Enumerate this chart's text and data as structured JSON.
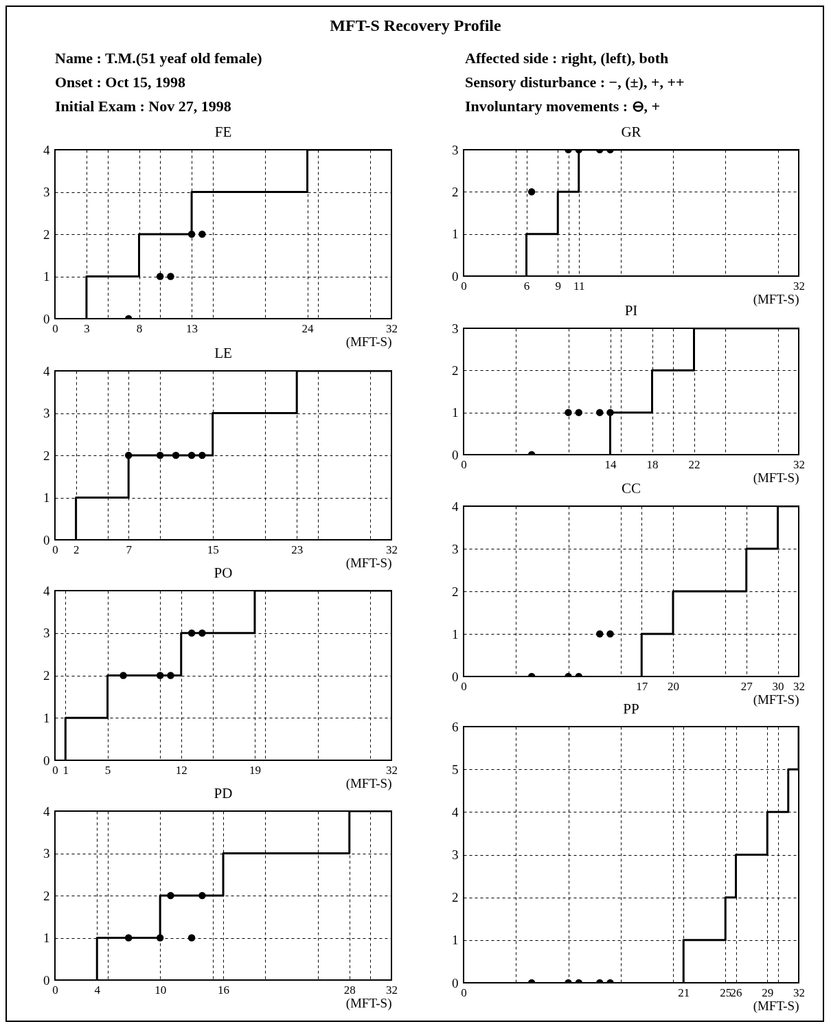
{
  "chart_data": [
    {
      "type": "other",
      "title": "MFT-S Recovery Profile",
      "annotations": [
        "Name : T.M.(51 yeaf old female)",
        "Onset : Oct 15, 1998",
        "Initial Exam : Nov 27, 1998",
        "Affected side : right, (left), both",
        "Sensory disturbance : −, (±), +, ++",
        "Involuntary movements : ⊖, +"
      ]
    },
    {
      "type": "step",
      "title": "FE",
      "xlabel": "(MFT-S)",
      "xlim": [
        0,
        32
      ],
      "ylim": [
        0,
        4
      ],
      "xticks": [
        0,
        3,
        {
          "value": 5,
          "label": null
        },
        8,
        {
          "value": 10,
          "label": null
        },
        13,
        {
          "value": 15,
          "label": null
        },
        {
          "value": 20,
          "label": null
        },
        24,
        {
          "value": 25,
          "label": null
        },
        {
          "value": 30,
          "label": null
        },
        32
      ],
      "yticks": [
        0,
        1,
        2,
        3,
        4
      ],
      "grid": true,
      "series": [
        {
          "type": "step",
          "color": "#000000",
          "x": [
            3,
            3,
            8,
            13,
            24,
            32
          ],
          "values": [
            0,
            1,
            2,
            3,
            4,
            4
          ]
        },
        {
          "type": "scatter",
          "color": "#000000",
          "marker": "circle",
          "x": [
            7,
            10,
            11,
            13,
            14
          ],
          "values": [
            0,
            1,
            1,
            2,
            2
          ]
        }
      ]
    },
    {
      "type": "step",
      "title": "LE",
      "xlabel": "(MFT-S)",
      "xlim": [
        0,
        32
      ],
      "ylim": [
        0,
        4
      ],
      "xticks": [
        0,
        2,
        {
          "value": 5,
          "label": null
        },
        7,
        {
          "value": 10,
          "label": null
        },
        15,
        {
          "value": 20,
          "label": null
        },
        23,
        {
          "value": 25,
          "label": null
        },
        {
          "value": 30,
          "label": null
        },
        32
      ],
      "yticks": [
        0,
        1,
        2,
        3,
        4
      ],
      "grid": true,
      "series": [
        {
          "type": "step",
          "color": "#000000",
          "x": [
            2,
            2,
            7,
            15,
            23,
            32
          ],
          "values": [
            0,
            1,
            2,
            3,
            4,
            4
          ]
        },
        {
          "type": "scatter",
          "color": "#000000",
          "marker": "circle",
          "x": [
            7,
            10,
            11.5,
            13,
            14
          ],
          "values": [
            2,
            2,
            2,
            2,
            2
          ]
        }
      ]
    },
    {
      "type": "step",
      "title": "PO",
      "xlabel": "(MFT-S)",
      "xlim": [
        0,
        32
      ],
      "ylim": [
        0,
        4
      ],
      "xticks": [
        0,
        1,
        5,
        {
          "value": 10,
          "label": null
        },
        12,
        {
          "value": 15,
          "label": null
        },
        19,
        {
          "value": 20,
          "label": null
        },
        {
          "value": 25,
          "label": null
        },
        {
          "value": 30,
          "label": null
        },
        32
      ],
      "yticks": [
        0,
        1,
        2,
        3,
        4
      ],
      "grid": true,
      "series": [
        {
          "type": "step",
          "color": "#000000",
          "x": [
            1,
            1,
            5,
            12,
            19,
            32
          ],
          "values": [
            0,
            1,
            2,
            3,
            4,
            4
          ]
        },
        {
          "type": "scatter",
          "color": "#000000",
          "marker": "circle",
          "x": [
            6.5,
            10,
            11,
            13,
            14
          ],
          "values": [
            2,
            2,
            2,
            3,
            3
          ]
        }
      ]
    },
    {
      "type": "step",
      "title": "PD",
      "xlabel": "(MFT-S)",
      "xlim": [
        0,
        32
      ],
      "ylim": [
        0,
        4
      ],
      "xticks": [
        0,
        4,
        {
          "value": 5,
          "label": null
        },
        10,
        {
          "value": 15,
          "label": null
        },
        16,
        {
          "value": 20,
          "label": null
        },
        {
          "value": 25,
          "label": null
        },
        28,
        {
          "value": 30,
          "label": null
        },
        32
      ],
      "yticks": [
        0,
        1,
        2,
        3,
        4
      ],
      "grid": true,
      "series": [
        {
          "type": "step",
          "color": "#000000",
          "x": [
            4,
            4,
            10,
            16,
            28,
            32
          ],
          "values": [
            0,
            1,
            2,
            3,
            4,
            4
          ]
        },
        {
          "type": "scatter",
          "color": "#000000",
          "marker": "circle",
          "x": [
            7,
            10,
            11,
            13,
            14
          ],
          "values": [
            1,
            1,
            2,
            1,
            2
          ]
        }
      ]
    },
    {
      "type": "step",
      "title": "GR",
      "xlabel": "(MFT-S)",
      "xlim": [
        0,
        32
      ],
      "ylim": [
        0,
        3
      ],
      "xticks": [
        0,
        {
          "value": 5,
          "label": null
        },
        6,
        9,
        {
          "value": 10,
          "label": null
        },
        11,
        {
          "value": 15,
          "label": null
        },
        {
          "value": 20,
          "label": null
        },
        {
          "value": 25,
          "label": null
        },
        {
          "value": 30,
          "label": null
        },
        32
      ],
      "yticks": [
        0,
        1,
        2,
        3
      ],
      "grid": true,
      "series": [
        {
          "type": "step",
          "color": "#000000",
          "x": [
            6,
            6,
            9,
            11,
            32
          ],
          "values": [
            0,
            1,
            2,
            3,
            3
          ]
        },
        {
          "type": "scatter",
          "color": "#000000",
          "marker": "circle",
          "x": [
            6.5,
            10,
            11,
            13,
            14
          ],
          "values": [
            2,
            3,
            3,
            3,
            3
          ]
        }
      ]
    },
    {
      "type": "step",
      "title": "PI",
      "xlabel": "(MFT-S)",
      "xlim": [
        0,
        32
      ],
      "ylim": [
        0,
        3
      ],
      "xticks": [
        0,
        {
          "value": 5,
          "label": null
        },
        {
          "value": 10,
          "label": null
        },
        14,
        {
          "value": 15,
          "label": null
        },
        18,
        {
          "value": 20,
          "label": null
        },
        22,
        {
          "value": 25,
          "label": null
        },
        {
          "value": 30,
          "label": null
        },
        32
      ],
      "yticks": [
        0,
        1,
        2,
        3
      ],
      "grid": true,
      "series": [
        {
          "type": "step",
          "color": "#000000",
          "x": [
            14,
            14,
            18,
            22,
            32
          ],
          "values": [
            0,
            1,
            2,
            3,
            3
          ]
        },
        {
          "type": "scatter",
          "color": "#000000",
          "marker": "circle",
          "x": [
            6.5,
            10,
            11,
            13,
            14
          ],
          "values": [
            0,
            1,
            1,
            1,
            1
          ]
        }
      ]
    },
    {
      "type": "step",
      "title": "CC",
      "xlabel": "(MFT-S)",
      "xlim": [
        0,
        32
      ],
      "ylim": [
        0,
        4
      ],
      "xticks": [
        0,
        {
          "value": 5,
          "label": null
        },
        {
          "value": 10,
          "label": null
        },
        {
          "value": 15,
          "label": null
        },
        17,
        20,
        {
          "value": 25,
          "label": null
        },
        27,
        30,
        32
      ],
      "yticks": [
        0,
        1,
        2,
        3,
        4
      ],
      "grid": true,
      "series": [
        {
          "type": "step",
          "color": "#000000",
          "x": [
            17,
            17,
            20,
            27,
            30,
            32
          ],
          "values": [
            0,
            1,
            2,
            3,
            4,
            4
          ]
        },
        {
          "type": "scatter",
          "color": "#000000",
          "marker": "circle",
          "x": [
            6.5,
            10,
            11,
            13,
            14
          ],
          "values": [
            0,
            0,
            0,
            1,
            1
          ]
        }
      ]
    },
    {
      "type": "step",
      "title": "PP",
      "xlabel": "(MFT-S)",
      "xlim": [
        0,
        32
      ],
      "ylim": [
        0,
        6
      ],
      "xticks": [
        0,
        {
          "value": 5,
          "label": null
        },
        {
          "value": 10,
          "label": null
        },
        {
          "value": 15,
          "label": null
        },
        {
          "value": 20,
          "label": null
        },
        21,
        25,
        26,
        29,
        {
          "value": 30,
          "label": null
        },
        32
      ],
      "yticks": [
        0,
        1,
        2,
        3,
        4,
        5,
        6
      ],
      "grid": true,
      "series": [
        {
          "type": "step",
          "color": "#000000",
          "x": [
            21,
            21,
            25,
            26,
            29,
            31,
            32
          ],
          "values": [
            0,
            1,
            2,
            3,
            4,
            5,
            6
          ]
        },
        {
          "type": "scatter",
          "color": "#000000",
          "marker": "circle",
          "x": [
            6.5,
            10,
            11,
            13,
            14
          ],
          "values": [
            0,
            0,
            0,
            0,
            0
          ]
        }
      ]
    }
  ]
}
